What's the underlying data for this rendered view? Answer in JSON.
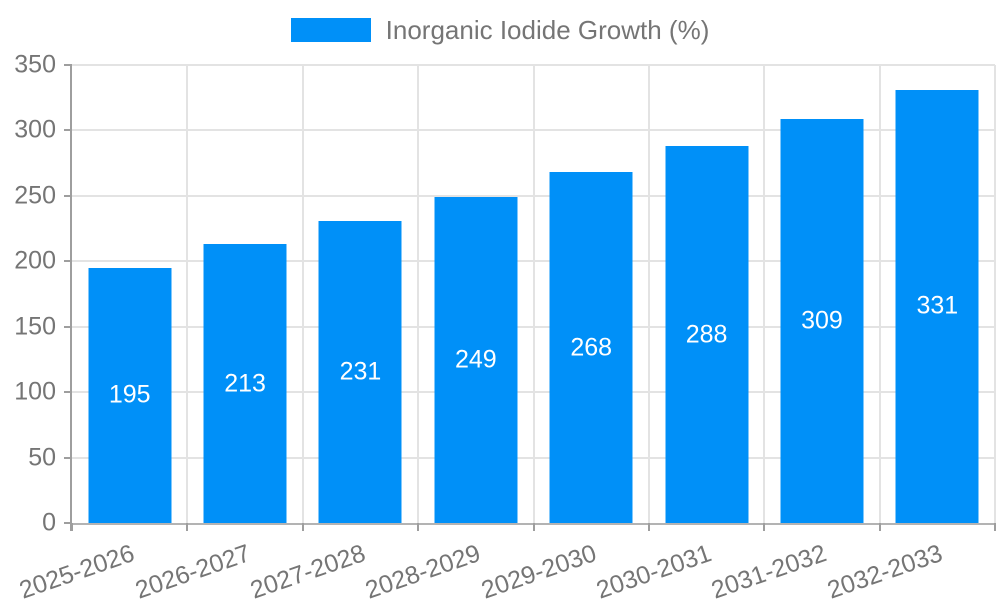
{
  "chart_data": {
    "type": "bar",
    "title": "",
    "legend": "Inorganic Iodide Growth (%)",
    "legend_position": "top-center",
    "categories": [
      "2025-2026",
      "2026-2027",
      "2027-2028",
      "2028-2029",
      "2029-2030",
      "2030-2031",
      "2031-2032",
      "2032-2033"
    ],
    "values": [
      195,
      213,
      231,
      249,
      268,
      288,
      309,
      331
    ],
    "xlabel": "",
    "ylabel": "",
    "ylim": [
      0,
      350
    ],
    "ytick_step": 50,
    "grid": true,
    "colors": {
      "bar": "#0090f8",
      "bar_label": "#ffffff",
      "axis": "#9e9e9e",
      "grid": "#e3e3e3",
      "text": "#757575"
    }
  }
}
